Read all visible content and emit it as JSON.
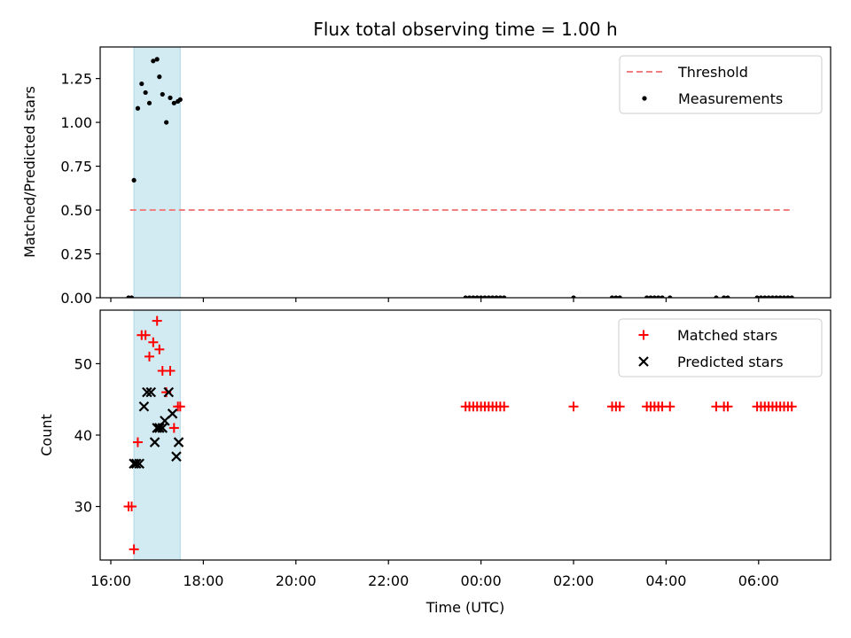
{
  "title": "Flux total observing time = 1.00 h",
  "colors": {
    "threshold": "#f08080",
    "measurement": "#000000",
    "matched": "#ff0000",
    "predicted": "#000000",
    "shade": "#add8e6"
  },
  "chart_data": [
    {
      "type": "scatter",
      "ylabel": "Matched/Predicted stars",
      "xlabel": "",
      "ylim": [
        0,
        1.43
      ],
      "yticks": [
        "0.00",
        "0.25",
        "0.50",
        "0.75",
        "1.00",
        "1.25"
      ],
      "shaded_region": {
        "x": [
          "16:30",
          "17:30"
        ]
      },
      "legend": {
        "placement": "top-right",
        "entries": [
          "Threshold",
          "Measurements"
        ]
      },
      "series": [
        {
          "name": "Threshold",
          "style": "dashed-line",
          "x": [
            "16:25",
            "06:45"
          ],
          "y": [
            0.5,
            0.5
          ]
        },
        {
          "name": "Measurements",
          "style": "dot",
          "x": [
            "16:23",
            "16:27",
            "16:30",
            "16:35",
            "16:40",
            "16:45",
            "16:50",
            "16:55",
            "17:00",
            "17:03",
            "17:07",
            "17:12",
            "17:17",
            "17:22",
            "17:27",
            "17:30",
            "23:40",
            "23:45",
            "23:50",
            "23:55",
            "00:00",
            "00:05",
            "00:10",
            "00:15",
            "00:20",
            "00:25",
            "00:30",
            "02:00",
            "02:50",
            "02:55",
            "03:00",
            "03:35",
            "03:40",
            "03:45",
            "03:50",
            "03:55",
            "04:05",
            "05:05",
            "05:15",
            "05:20",
            "05:58",
            "06:03",
            "06:08",
            "06:13",
            "06:18",
            "06:23",
            "06:28",
            "06:33",
            "06:38",
            "06:43"
          ],
          "y": [
            0.0,
            0.0,
            0.67,
            1.08,
            1.22,
            1.17,
            1.11,
            1.35,
            1.36,
            1.26,
            1.16,
            1.0,
            1.14,
            1.11,
            1.12,
            1.13,
            0.0,
            0.0,
            0.0,
            0.0,
            0.0,
            0.0,
            0.0,
            0.0,
            0.0,
            0.0,
            0.0,
            0.0,
            0.0,
            0.0,
            0.0,
            0.0,
            0.0,
            0.0,
            0.0,
            0.0,
            0.0,
            0.0,
            0.0,
            0.0,
            0.0,
            0.0,
            0.0,
            0.0,
            0.0,
            0.0,
            0.0,
            0.0,
            0.0,
            0.0
          ]
        }
      ]
    },
    {
      "type": "scatter",
      "ylabel": "Count",
      "xlabel": "Time (UTC)",
      "ylim": [
        22.5,
        57.5
      ],
      "yticks": [
        "30",
        "40",
        "50"
      ],
      "xticks": [
        "16:00",
        "18:00",
        "20:00",
        "22:00",
        "00:00",
        "02:00",
        "04:00",
        "06:00"
      ],
      "shaded_region": {
        "x": [
          "16:30",
          "17:30"
        ]
      },
      "legend": {
        "placement": "top-right",
        "entries": [
          "Matched stars",
          "Predicted stars"
        ]
      },
      "series": [
        {
          "name": "Matched stars",
          "style": "plus",
          "x": [
            "16:23",
            "16:27",
            "16:30",
            "16:35",
            "16:40",
            "16:45",
            "16:50",
            "16:55",
            "17:00",
            "17:03",
            "17:07",
            "17:12",
            "17:17",
            "17:22",
            "17:27",
            "17:30",
            "23:40",
            "23:45",
            "23:50",
            "23:55",
            "00:00",
            "00:05",
            "00:10",
            "00:15",
            "00:20",
            "00:25",
            "00:30",
            "02:00",
            "02:50",
            "02:55",
            "03:00",
            "03:35",
            "03:40",
            "03:45",
            "03:50",
            "03:55",
            "04:05",
            "05:05",
            "05:15",
            "05:20",
            "05:58",
            "06:03",
            "06:08",
            "06:13",
            "06:18",
            "06:23",
            "06:28",
            "06:33",
            "06:38",
            "06:43"
          ],
          "y": [
            30,
            30,
            24,
            39,
            54,
            54,
            51,
            53,
            56,
            52,
            49,
            46,
            49,
            41,
            44,
            44,
            44,
            44,
            44,
            44,
            44,
            44,
            44,
            44,
            44,
            44,
            44,
            44,
            44,
            44,
            44,
            44,
            44,
            44,
            44,
            44,
            44,
            44,
            44,
            44,
            44,
            44,
            44,
            44,
            44,
            44,
            44,
            44,
            44,
            44
          ]
        },
        {
          "name": "Predicted stars",
          "style": "cross",
          "x": [
            "16:30",
            "16:33",
            "16:37",
            "16:43",
            "16:47",
            "16:52",
            "16:57",
            "17:00",
            "17:03",
            "17:07",
            "17:10",
            "17:15",
            "17:20",
            "17:25",
            "17:28"
          ],
          "y": [
            36,
            36,
            36,
            44,
            46,
            46,
            39,
            41,
            41,
            41,
            42,
            46,
            43,
            37,
            39
          ]
        }
      ]
    }
  ]
}
